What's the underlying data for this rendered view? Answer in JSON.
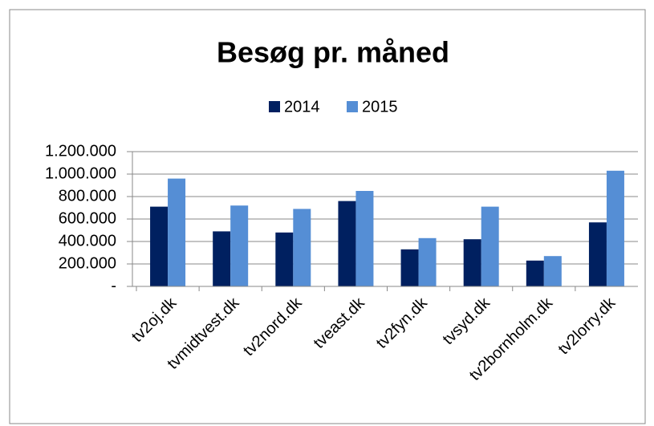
{
  "chart_data": {
    "type": "bar",
    "title": "Besøg pr. måned",
    "categories": [
      "tv2oj.dk",
      "tvmidtvest.dk",
      "tv2nord.dk",
      "tveast.dk",
      "tv2fyn.dk",
      "tvsyd.dk",
      "tv2bornholm.dk",
      "tv2lorry.dk"
    ],
    "series": [
      {
        "name": "2014",
        "color": "#002060",
        "values": [
          710000,
          490000,
          480000,
          760000,
          330000,
          420000,
          230000,
          570000
        ]
      },
      {
        "name": "2015",
        "color": "#558ed5",
        "values": [
          960000,
          720000,
          690000,
          850000,
          430000,
          710000,
          270000,
          1030000
        ]
      }
    ],
    "ylim": [
      0,
      1200000
    ],
    "yticks": [
      {
        "value": 0,
        "label": "-"
      },
      {
        "value": 200000,
        "label": "200.000"
      },
      {
        "value": 400000,
        "label": "400.000"
      },
      {
        "value": 600000,
        "label": "600.000"
      },
      {
        "value": 800000,
        "label": "800.000"
      },
      {
        "value": 1000000,
        "label": "1.000.000"
      },
      {
        "value": 1200000,
        "label": "1.200.000"
      }
    ],
    "grid": true,
    "legend": "top"
  }
}
